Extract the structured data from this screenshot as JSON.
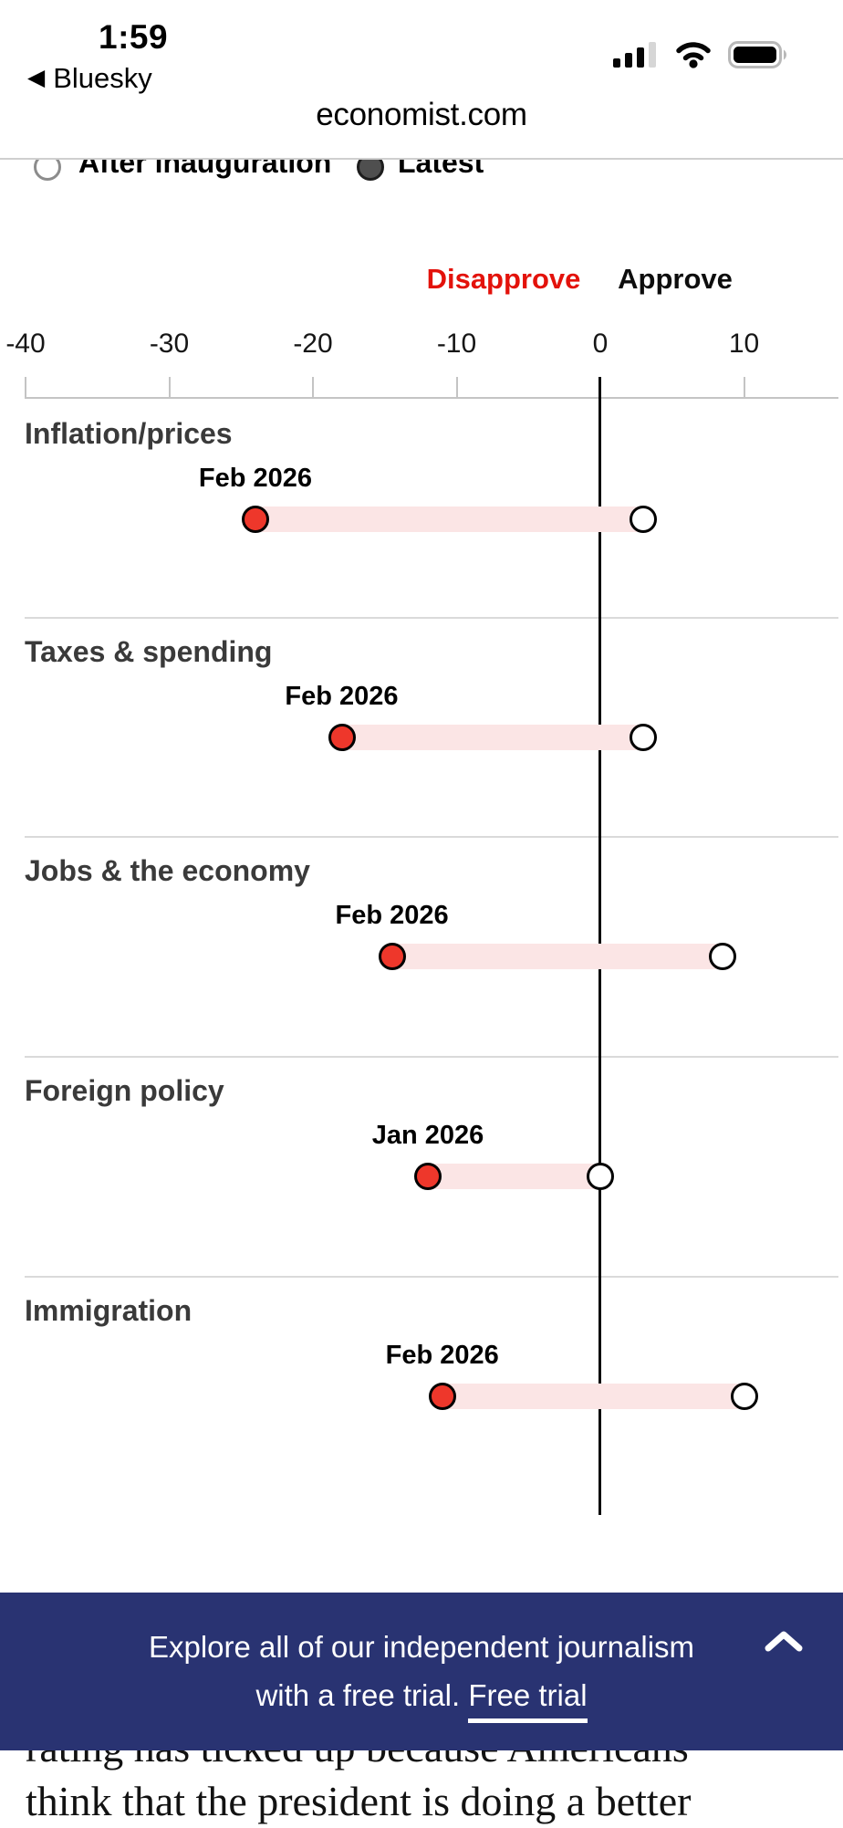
{
  "status_bar": {
    "time": "1:59",
    "back_label": "Bluesky",
    "back_icon": "back-triangle",
    "icons": [
      "cellular-signal-icon",
      "wifi-icon",
      "battery-icon"
    ]
  },
  "browser": {
    "url": "economist.com"
  },
  "legend": {
    "items": [
      {
        "label": "After inauguration",
        "swatch": "open-circle"
      },
      {
        "label": "Latest",
        "swatch": "filled-gray-circle"
      }
    ]
  },
  "chart_data": {
    "type": "dumbbell",
    "direction_labels": {
      "disapprove": "Disapprove",
      "approve": "Approve"
    },
    "x_ticks": [
      -40,
      -30,
      -20,
      -10,
      0,
      10
    ],
    "x_tick_labels": [
      "-40",
      "-30",
      "-20",
      "-10",
      "0",
      "10"
    ],
    "xlim": [
      -40,
      16.5
    ],
    "grid": "off",
    "legend_entries": [
      "After inauguration",
      "Latest"
    ],
    "rows": [
      {
        "category": "Inflation/prices",
        "date_label": "Feb 2026",
        "latest": -24,
        "after_inauguration": 3
      },
      {
        "category": "Taxes & spending",
        "date_label": "Feb 2026",
        "latest": -18,
        "after_inauguration": 3
      },
      {
        "category": "Jobs & the economy",
        "date_label": "Feb 2026",
        "latest": -14.5,
        "after_inauguration": 8.5
      },
      {
        "category": "Foreign policy",
        "date_label": "Jan 2026",
        "latest": -12,
        "after_inauguration": 0
      },
      {
        "category": "Immigration",
        "date_label": "Feb 2026",
        "latest": -11,
        "after_inauguration": 10
      }
    ],
    "colors": {
      "latest_dot": "#ee372b",
      "after_dot": "#ffffff",
      "band": "#fbe5e5",
      "disapprove_text": "#e3120b",
      "zero_line": "#0a0a0a"
    }
  },
  "banner": {
    "line1": "Explore all of our independent journalism",
    "line2_prefix": "with a free trial. ",
    "link_label": "Free trial",
    "collapse_icon": "chevron-up-icon",
    "bg_color": "#293372"
  },
  "article": {
    "line1": "rating has ticked up because Americans",
    "line2": "think that the president is doing a better"
  }
}
